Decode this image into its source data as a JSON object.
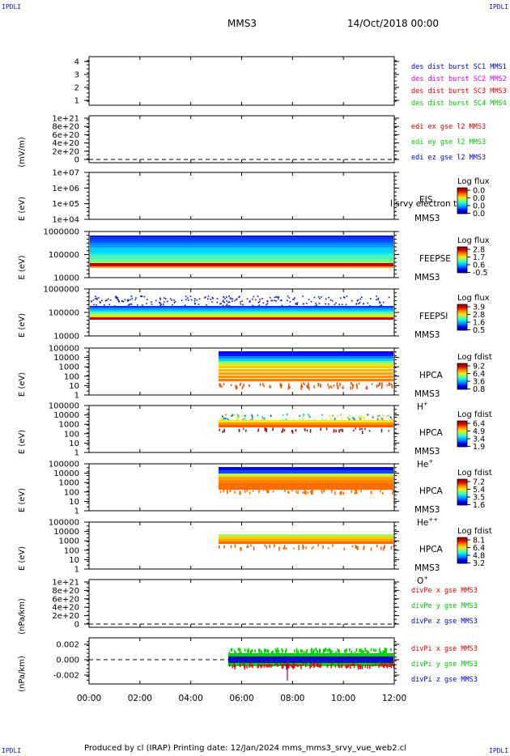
{
  "header": {
    "corner_label": "IPDLI",
    "mission": "MMS3",
    "date": "14/Oct/2018 00:00"
  },
  "footer": {
    "text": "Produced by cl (IRAP)   Printing date: 12/Jan/2024   mms_mms3_srvy_vue_web2.cl"
  },
  "time_axis": {
    "ticks": [
      "00:00",
      "02:00",
      "04:00",
      "06:00",
      "08:00",
      "10:00",
      "12:00"
    ]
  },
  "colors": {
    "blue": "#0000c8",
    "magenta": "#e000e0",
    "red": "#e00000",
    "green": "#00c800",
    "black": "#000000"
  },
  "chart_data": [
    {
      "type": "line",
      "ylabel": "",
      "yticks": [
        "4",
        "3",
        "2",
        "1"
      ],
      "legend": [
        {
          "text": "des dist burst SC1 MMS1",
          "color": "#0000c8"
        },
        {
          "text": "des dist burst SC2 MMS2",
          "color": "#e000e0"
        },
        {
          "text": "des dist burst SC3 MMS3",
          "color": "#e00000"
        },
        {
          "text": "des dist burst SC4 MMS4",
          "color": "#00c800"
        }
      ]
    },
    {
      "type": "line",
      "ylabel": "(mV/m)",
      "yticks": [
        "1e+21",
        "8e+20",
        "6e+20",
        "4e+20",
        "2e+20",
        "0"
      ],
      "legend": [
        {
          "text": "edi ex gse l2 MMS3",
          "color": "#e00000"
        },
        {
          "text": "edi ey gse l2 MMS3",
          "color": "#00c800"
        },
        {
          "text": "edi ez gse l2 MMS3",
          "color": "#0000c8"
        }
      ]
    },
    {
      "type": "heatmap",
      "ylabel": "E (eV)",
      "yticks": [
        "1e+07",
        "1e+06",
        "1e+05",
        "1e+04"
      ],
      "instrument": "EIS",
      "overlap_label": "l srvy electron to",
      "spacecraft": "MMS3",
      "colorbar_title": "Log flux",
      "colorbar_ticks": [
        "0.0",
        "0.0",
        "0.0",
        "0.0"
      ]
    },
    {
      "type": "heatmap",
      "ylabel": "E (eV)",
      "yticks": [
        "1000000",
        "100000",
        "10000"
      ],
      "instrument": "FEEPSE",
      "spacecraft": "MMS3",
      "colorbar_title": "Log flux",
      "colorbar_ticks": [
        "2.8",
        "1.7",
        "0.6",
        "-0.5"
      ]
    },
    {
      "type": "heatmap",
      "ylabel": "E (eV)",
      "yticks": [
        "1000000",
        "100000",
        "10000"
      ],
      "instrument": "FEEPSI",
      "spacecraft": "MMS3",
      "colorbar_title": "Log flux",
      "colorbar_ticks": [
        "3.9",
        "2.8",
        "1.6",
        "0.5"
      ]
    },
    {
      "type": "heatmap",
      "ylabel": "E (eV)",
      "yticks": [
        "100000",
        "10000",
        "1000",
        "100",
        "10",
        "1"
      ],
      "instrument": "HPCA",
      "spacecraft": "MMS3",
      "species": "H",
      "species_sup": "+",
      "colorbar_title": "Log fdist",
      "colorbar_ticks": [
        "9.2",
        "6.4",
        "3.6",
        "0.8"
      ]
    },
    {
      "type": "heatmap",
      "ylabel": "E (eV)",
      "yticks": [
        "100000",
        "10000",
        "1000",
        "100",
        "10",
        "1"
      ],
      "instrument": "HPCA",
      "spacecraft": "MMS3",
      "species": "He",
      "species_sup": "+",
      "colorbar_title": "Log fdist",
      "colorbar_ticks": [
        "6.4",
        "4.9",
        "3.4",
        "1.9"
      ]
    },
    {
      "type": "heatmap",
      "ylabel": "E (eV)",
      "yticks": [
        "100000",
        "10000",
        "1000",
        "100",
        "10",
        "1"
      ],
      "instrument": "HPCA",
      "spacecraft": "MMS3",
      "species": "He",
      "species_sup": "++",
      "colorbar_title": "Log fdist",
      "colorbar_ticks": [
        "7.2",
        "5.4",
        "3.5",
        "1.6"
      ]
    },
    {
      "type": "heatmap",
      "ylabel": "E (eV)",
      "yticks": [
        "100000",
        "10000",
        "1000",
        "100",
        "10",
        "1"
      ],
      "instrument": "HPCA",
      "spacecraft": "MMS3",
      "species": "O",
      "species_sup": "+",
      "colorbar_title": "Log fdist",
      "colorbar_ticks": [
        "8.1",
        "6.4",
        "4.8",
        "3.2"
      ]
    },
    {
      "type": "line",
      "ylabel": "(nPa/km)",
      "yticks": [
        "1e+21",
        "8e+20",
        "6e+20",
        "4e+20",
        "2e+20",
        "0"
      ],
      "legend": [
        {
          "text": "divPe x gse MMS3",
          "color": "#e00000"
        },
        {
          "text": "divPe y gse MMS3",
          "color": "#00c800"
        },
        {
          "text": "divPe z gse MMS3",
          "color": "#0000c8"
        }
      ]
    },
    {
      "type": "line",
      "ylabel": "(nPa/km)",
      "yticks": [
        "0.002",
        "0.000",
        "-0.002"
      ],
      "legend": [
        {
          "text": "divPi x gse MMS3",
          "color": "#e00000"
        },
        {
          "text": "divPi y gse MMS3",
          "color": "#00c800"
        },
        {
          "text": "divPi z gse MMS3",
          "color": "#0000c8"
        }
      ]
    }
  ]
}
